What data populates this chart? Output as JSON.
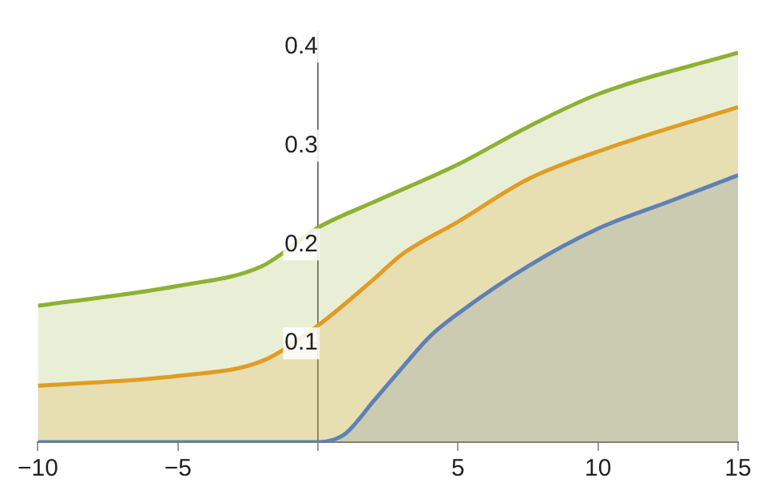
{
  "chart_data": {
    "type": "area",
    "xlim": [
      -10,
      15
    ],
    "ylim": [
      0,
      0.415
    ],
    "xticks": [
      -10,
      -5,
      {
        "value": 0,
        "label": null
      },
      5,
      10,
      15
    ],
    "yticks": [
      {
        "value": 0,
        "label": null
      },
      0.1,
      0.2,
      0.3,
      0.4
    ],
    "grid": false,
    "series": [
      {
        "color": "#5e81b5",
        "x": [
          -10,
          -5,
          0,
          0.5,
          1,
          2,
          3,
          4,
          5,
          7.5,
          10,
          12.5,
          15
        ],
        "values": [
          0,
          0,
          0,
          0.002,
          0.009,
          0.042,
          0.075,
          0.107,
          0.13,
          0.178,
          0.216,
          0.243,
          0.27
        ]
      },
      {
        "color": "#e19c24",
        "x": [
          -10,
          -5,
          -2,
          0,
          2,
          3,
          5,
          7.5,
          10,
          15
        ],
        "values": [
          0.057,
          0.067,
          0.082,
          0.118,
          0.165,
          0.19,
          0.223,
          0.266,
          0.294,
          0.339
        ]
      },
      {
        "color": "#8fb032",
        "x": [
          -10,
          -5,
          -2,
          0,
          2,
          5,
          7.5,
          10,
          15
        ],
        "values": [
          0.138,
          0.158,
          0.178,
          0.217,
          0.243,
          0.281,
          0.319,
          0.352,
          0.394
        ]
      }
    ]
  }
}
